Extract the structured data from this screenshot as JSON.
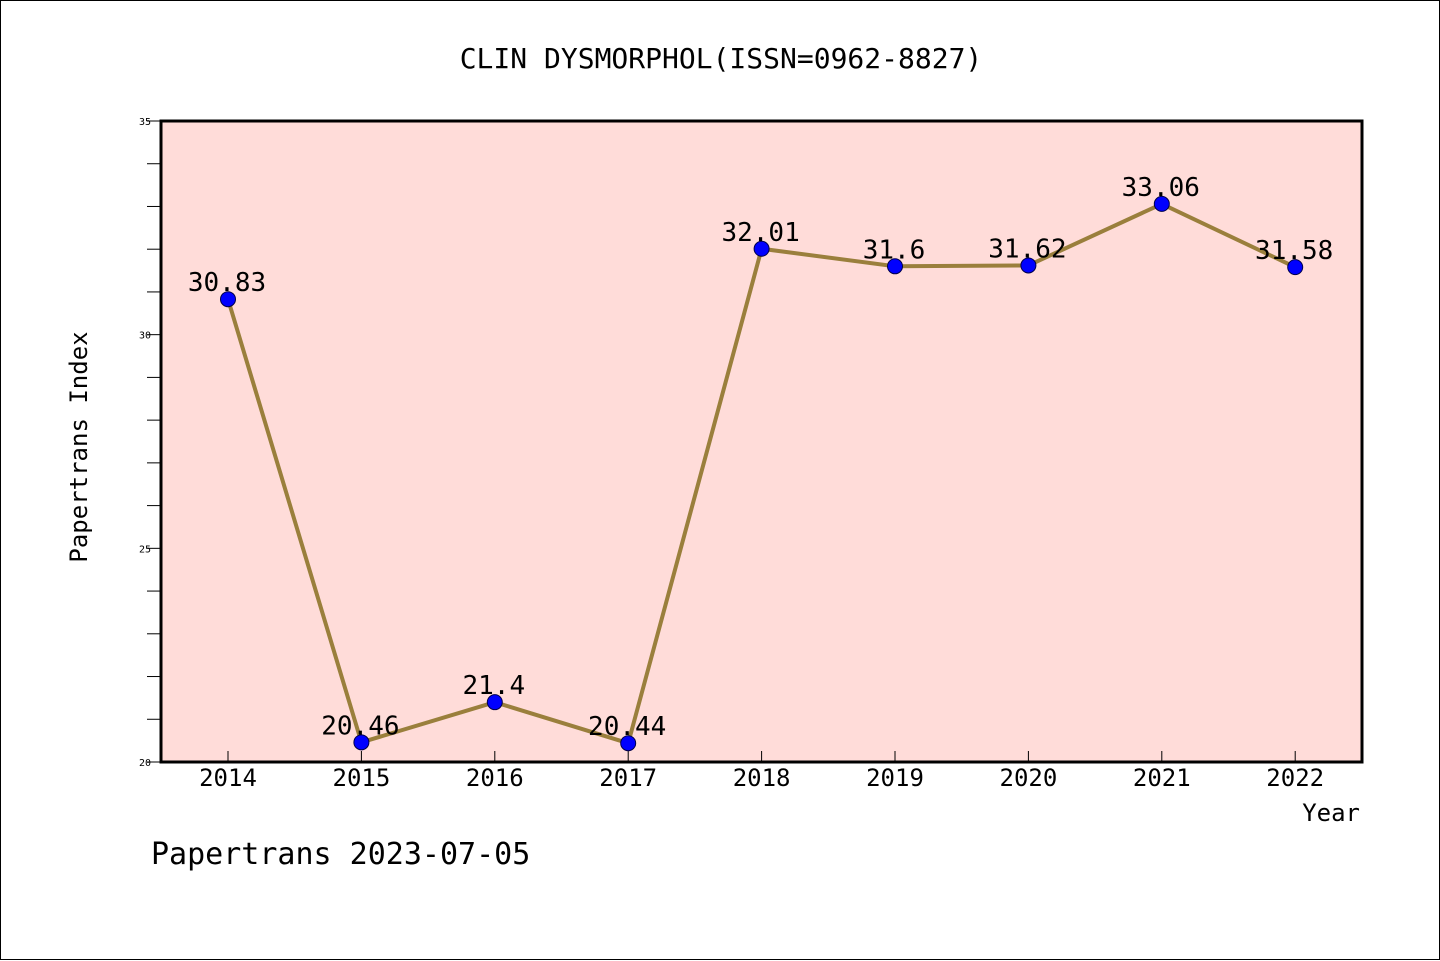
{
  "colors": {
    "plot_background": "#ffdcd9",
    "line": "#9a7f3c",
    "marker": "#0000ff",
    "axis": "#000000"
  },
  "footer": {
    "text": "Papertrans 2023-07-05"
  },
  "chart_data": {
    "type": "line",
    "title": "CLIN DYSMORPHOL(ISSN=0962-8827)",
    "xlabel": "Year",
    "ylabel": "Papertrans Index",
    "x": [
      "2014",
      "2015",
      "2016",
      "2017",
      "2018",
      "2019",
      "2020",
      "2021",
      "2022"
    ],
    "series": [
      {
        "values": [
          30.83,
          20.46,
          21.4,
          20.44,
          32.01,
          31.6,
          31.62,
          33.06,
          31.58
        ],
        "labels": [
          "30.83",
          "20.46",
          "21.4",
          "20.44",
          "32.01",
          "31.6",
          "31.62",
          "33.06",
          "31.58"
        ]
      }
    ],
    "ylim": [
      20,
      35
    ],
    "yticks": [
      20,
      25,
      30,
      35
    ],
    "ytick_labels": [
      "20",
      "25",
      "30",
      "35"
    ],
    "y_minor_step": 1,
    "grid": false,
    "legend": "none"
  }
}
